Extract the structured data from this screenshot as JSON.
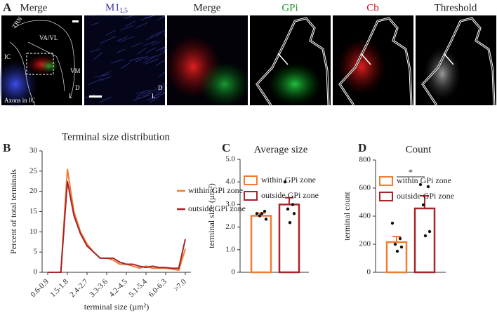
{
  "figure": {
    "panel_letters": [
      "A",
      "B",
      "C",
      "D"
    ],
    "panel_a": {
      "titles": [
        "Merge",
        "M1",
        "Merge",
        "GPi",
        "Cb",
        "Threshold"
      ],
      "title_subscript": "L5",
      "labels": [
        "TRN",
        "VA/VL",
        "IC",
        "VM",
        "Axons in IC",
        "D",
        "L",
        "D",
        "L"
      ]
    }
  },
  "chart_data": [
    {
      "type": "line",
      "title": "Terminal size distribution",
      "x_label": "terminal size (µm²)",
      "y_label": "Percent of total terminals",
      "categories": [
        "0.6-0.9",
        null,
        null,
        "1.5-1.8",
        null,
        null,
        "2.4-2.7",
        null,
        null,
        "3.3-3.6",
        null,
        null,
        "4.2-4.5",
        null,
        null,
        "5.1-5.4",
        null,
        null,
        "6.0-6.3",
        null,
        null,
        ">7.0"
      ],
      "series": [
        {
          "name": "within GPi zone",
          "color": "#f07d32",
          "values": [
            0,
            0,
            0,
            25.5,
            15,
            10,
            7,
            5,
            3.5,
            3.5,
            3,
            2,
            2,
            1.5,
            1,
            1.5,
            1,
            1,
            1,
            0.8,
            0.5,
            5.8
          ]
        },
        {
          "name": "outside GPi zone",
          "color": "#a8232a",
          "values": [
            0,
            0,
            0,
            22.5,
            14,
            9.5,
            6.5,
            5,
            3.5,
            3.5,
            3.5,
            2.5,
            2,
            2,
            1.5,
            1.2,
            1.5,
            1.2,
            1.2,
            1,
            1,
            8.2
          ]
        }
      ],
      "ylim": [
        0,
        30
      ],
      "yticks": [
        0,
        5,
        10,
        15,
        20,
        25,
        30
      ]
    },
    {
      "type": "bar",
      "title": "Average size",
      "y_label": "terminal size (µm²)",
      "series": [
        {
          "name": "within GPi zone",
          "color": "#f07d32",
          "values": [
            2.5
          ],
          "errors": [
            0.12
          ],
          "points": [
            2.6,
            2.7,
            2.5,
            2.35,
            2.6
          ]
        },
        {
          "name": "outside GPi zone",
          "color": "#a8232a",
          "values": [
            3.0
          ],
          "errors": [
            0.3
          ],
          "points": [
            4.0,
            3.0,
            2.8,
            2.6,
            2.2
          ]
        }
      ],
      "ylim": [
        0,
        5
      ],
      "yticks": [
        0,
        {
          "value": 1,
          "label": "1.0"
        },
        {
          "value": 2,
          "label": "2.0"
        },
        {
          "value": 3,
          "label": "3.0"
        },
        {
          "value": 4,
          "label": "4.0"
        },
        {
          "value": 5,
          "label": "5.0"
        }
      ]
    },
    {
      "type": "bar",
      "title": "Count",
      "y_label": "terminal count",
      "annotation": "*",
      "series": [
        {
          "name": "within GPi zone",
          "color": "#f07d32",
          "values": [
            215
          ],
          "errors": [
            40
          ],
          "points": [
            350,
            240,
            200,
            180,
            150
          ]
        },
        {
          "name": "outside GPi zone",
          "color": "#a8232a",
          "values": [
            455
          ],
          "errors": [
            90
          ],
          "points": [
            625,
            610,
            480,
            290,
            260
          ]
        }
      ],
      "ylim": [
        0,
        800
      ],
      "yticks": [
        0,
        200,
        400,
        600,
        800
      ]
    }
  ]
}
